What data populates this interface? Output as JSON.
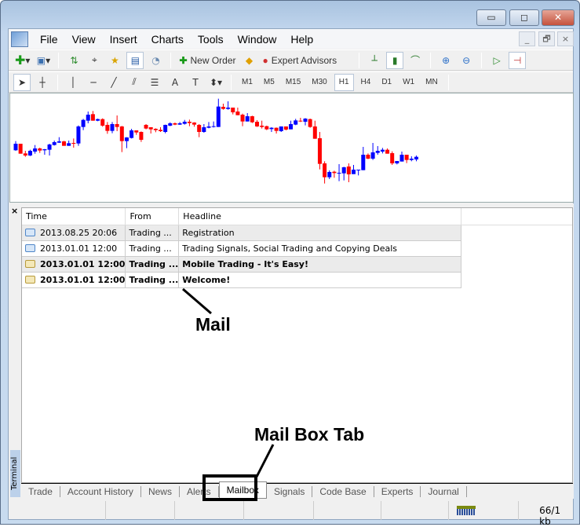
{
  "window": {
    "controls": {
      "minimize": "▭",
      "maximize": "◻",
      "close": "✕"
    }
  },
  "menu": [
    "File",
    "View",
    "Insert",
    "Charts",
    "Tools",
    "Window",
    "Help"
  ],
  "mdi": {
    "minimize": "_",
    "restore": "🗗",
    "close": "×"
  },
  "toolbar1": {
    "new_order": "New Order",
    "expert_advisors": "Expert Advisors"
  },
  "timeframes": [
    "M1",
    "M5",
    "M15",
    "M30",
    "H1",
    "H4",
    "D1",
    "W1",
    "MN"
  ],
  "active_timeframe": "H1",
  "chart_data": {
    "type": "candlestick",
    "up_color": "#0000ff",
    "down_color": "#ff0000",
    "candles": [
      [
        130,
        155,
        165,
        128
      ],
      [
        155,
        117,
        155,
        117
      ],
      [
        118,
        110,
        128,
        105
      ],
      [
        110,
        128,
        132,
        108
      ],
      [
        125,
        137,
        150,
        117
      ],
      [
        137,
        129,
        140,
        120
      ],
      [
        130,
        134,
        135,
        113
      ],
      [
        132,
        152,
        155,
        110
      ],
      [
        150,
        161,
        167,
        148
      ],
      [
        159,
        164,
        180,
        158
      ],
      [
        164,
        147,
        166,
        147
      ],
      [
        147,
        157,
        167,
        147
      ],
      [
        158,
        156,
        175,
        140
      ],
      [
        156,
        221,
        225,
        147
      ],
      [
        219,
        246,
        250,
        207
      ],
      [
        243,
        266,
        278,
        233
      ],
      [
        268,
        243,
        280,
        243
      ],
      [
        243,
        249,
        251,
        241
      ],
      [
        249,
        224,
        252,
        220
      ],
      [
        227,
        204,
        238,
        193
      ],
      [
        204,
        230,
        238,
        195
      ],
      [
        230,
        219,
        263,
        203
      ],
      [
        221,
        165,
        223,
        123
      ],
      [
        165,
        179,
        180,
        138
      ],
      [
        177,
        206,
        212,
        175
      ],
      [
        206,
        198,
        206,
        189
      ],
      [
        200,
        170,
        202,
        162
      ],
      [
        227,
        213,
        230,
        210
      ],
      [
        218,
        210,
        218,
        194
      ],
      [
        212,
        207,
        214,
        199
      ],
      [
        208,
        203,
        218,
        200
      ],
      [
        200,
        227,
        228,
        195
      ],
      [
        224,
        233,
        237,
        222
      ],
      [
        233,
        228,
        236,
        226
      ],
      [
        228,
        233,
        238,
        227
      ],
      [
        231,
        239,
        246,
        228
      ],
      [
        239,
        234,
        247,
        222
      ],
      [
        236,
        228,
        237,
        220
      ],
      [
        227,
        200,
        230,
        180
      ],
      [
        200,
        218,
        230,
        197
      ],
      [
        216,
        221,
        238,
        214
      ],
      [
        219,
        222,
        240,
        217
      ],
      [
        219,
        297,
        327,
        219
      ],
      [
        296,
        288,
        308,
        285
      ],
      [
        288,
        293,
        317,
        285
      ],
      [
        293,
        275,
        293,
        267
      ],
      [
        278,
        264,
        293,
        264
      ],
      [
        266,
        240,
        270,
        222
      ],
      [
        240,
        260,
        272,
        240
      ],
      [
        260,
        237,
        262,
        234
      ],
      [
        239,
        221,
        245,
        219
      ],
      [
        224,
        219,
        243,
        213
      ],
      [
        222,
        210,
        224,
        207
      ],
      [
        211,
        216,
        218,
        200
      ],
      [
        216,
        204,
        217,
        194
      ],
      [
        203,
        221,
        221,
        200
      ],
      [
        221,
        209,
        221,
        206
      ],
      [
        210,
        230,
        243,
        210
      ],
      [
        228,
        244,
        250,
        226
      ],
      [
        243,
        240,
        254,
        238
      ],
      [
        239,
        251,
        253,
        225
      ],
      [
        249,
        219,
        251,
        216
      ],
      [
        221,
        174,
        243,
        174
      ],
      [
        176,
        78,
        200,
        57
      ],
      [
        80,
        27,
        88,
        3
      ],
      [
        27,
        47,
        53,
        20
      ],
      [
        48,
        43,
        52,
        25
      ],
      [
        43,
        44,
        77,
        12
      ],
      [
        42,
        65,
        67,
        15
      ],
      [
        68,
        38,
        80,
        8
      ],
      [
        39,
        56,
        74,
        39
      ],
      [
        54,
        56,
        56,
        34
      ],
      [
        54,
        113,
        143,
        54
      ],
      [
        113,
        98,
        118,
        96
      ],
      [
        98,
        122,
        158,
        93
      ],
      [
        120,
        128,
        146,
        113
      ],
      [
        125,
        132,
        139,
        118
      ],
      [
        132,
        117,
        137,
        117
      ],
      [
        119,
        80,
        126,
        74
      ],
      [
        80,
        89,
        89,
        76
      ],
      [
        87,
        113,
        125,
        87
      ],
      [
        113,
        93,
        113,
        81
      ],
      [
        93,
        98,
        107,
        88
      ],
      [
        95,
        105,
        110,
        88
      ]
    ]
  },
  "terminal": {
    "label": "Terminal",
    "close": "×",
    "columns": [
      "Time",
      "From",
      "Headline"
    ],
    "rows": [
      {
        "time": "2013.08.25 20:06",
        "from": "Trading ...",
        "headline": "Registration",
        "read": true
      },
      {
        "time": "2013.01.01 12:00",
        "from": "Trading ...",
        "headline": "Trading Signals, Social Trading and Copying Deals",
        "read": true
      },
      {
        "time": "2013.01.01 12:00",
        "from": "Trading ...",
        "headline": "Mobile Trading - It's Easy!",
        "read": false
      },
      {
        "time": "2013.01.01 12:00",
        "from": "Trading ...",
        "headline": "Welcome!",
        "read": false
      }
    ],
    "tabs": [
      "Trade",
      "Account History",
      "News",
      "Alerts",
      "Mailbox",
      "Signals",
      "Code Base",
      "Experts",
      "Journal"
    ],
    "active_tab": "Mailbox"
  },
  "status": {
    "traffic": "66/1 kb"
  },
  "annotations": {
    "mail": "Mail",
    "mailbox_tab": "Mail Box Tab"
  }
}
